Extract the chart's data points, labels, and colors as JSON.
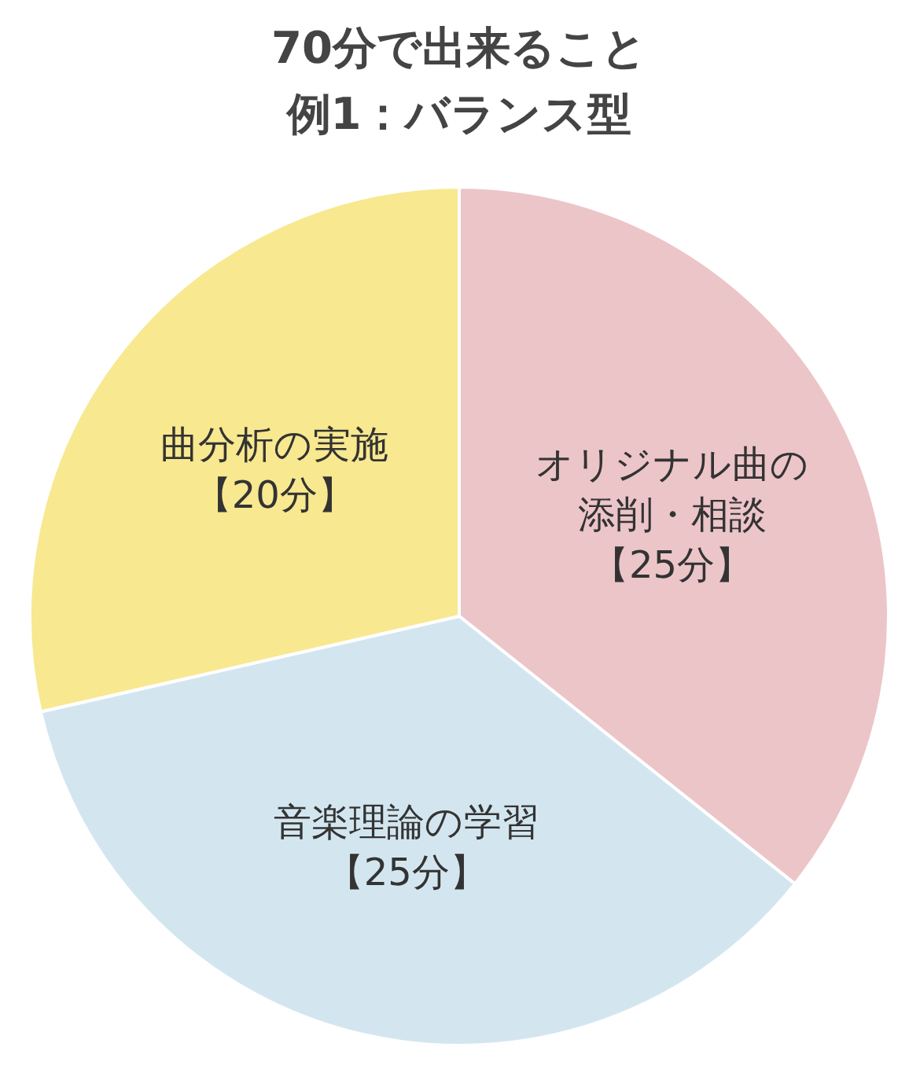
{
  "chart_data": {
    "type": "pie",
    "title": "70分で出来ること",
    "subtitle": "例1：バランス型",
    "categories": [
      "オリジナル曲の添削・相談",
      "音楽理論の学習",
      "曲分析の実施"
    ],
    "values": [
      25,
      25,
      20
    ],
    "colors": [
      "#ecc5c9",
      "#d3e6f0",
      "#f8e88f"
    ],
    "value_labels": [
      "【25分】",
      "【25分】",
      "【20分】"
    ]
  }
}
